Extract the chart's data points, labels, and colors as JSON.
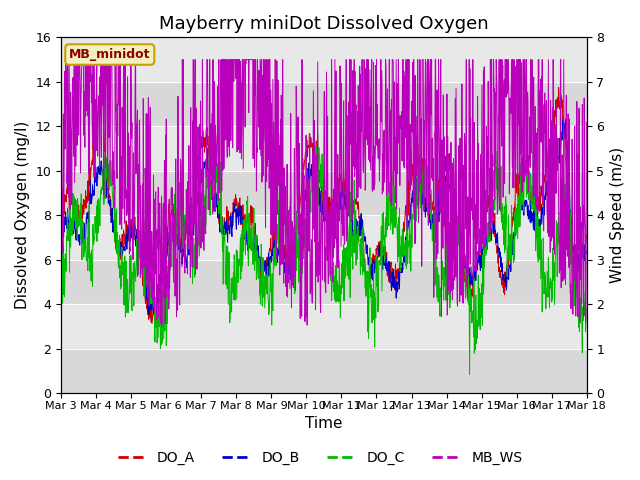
{
  "title": "Mayberry miniDot Dissolved Oxygen",
  "ylabel_left": "Dissolved Oxygen (mg/l)",
  "ylabel_right": "Wind Speed (m/s)",
  "xlabel": "Time",
  "ylim_left": [
    0,
    16
  ],
  "ylim_right": [
    0.0,
    8.0
  ],
  "left_yticks": [
    0,
    2,
    4,
    6,
    8,
    10,
    12,
    14,
    16
  ],
  "right_yticks": [
    0.0,
    1.0,
    2.0,
    3.0,
    4.0,
    5.0,
    6.0,
    7.0,
    8.0
  ],
  "xtick_labels": [
    "Mar 3",
    "Mar 4",
    "Mar 5",
    "Mar 6",
    "Mar 7",
    "Mar 8",
    "Mar 9",
    "Mar 10",
    "Mar 11",
    "Mar 12",
    "Mar 13",
    "Mar 14",
    "Mar 15",
    "Mar 16",
    "Mar 17",
    "Mar 18"
  ],
  "sensor_label": "MB_minidot",
  "legend_items": [
    {
      "label": "DO_A",
      "color": "#cc0000"
    },
    {
      "label": "DO_B",
      "color": "#0000cc"
    },
    {
      "label": "DO_C",
      "color": "#00bb00"
    },
    {
      "label": "MB_WS",
      "color": "#bb00bb"
    }
  ],
  "bg_color": "#e8e8e8",
  "bg_band_color": "#d8d8d8",
  "title_fontsize": 13,
  "axis_fontsize": 11,
  "tick_fontsize": 9,
  "legend_fontsize": 10,
  "sensor_label_color": "#8b0000",
  "sensor_box_facecolor": "#f5f0c0",
  "sensor_box_edgecolor": "#c8a000"
}
